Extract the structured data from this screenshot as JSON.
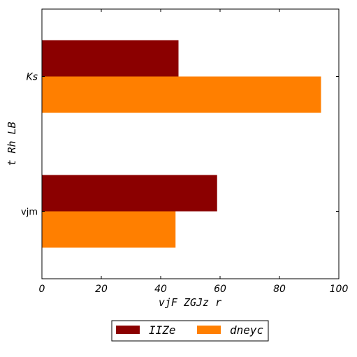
{
  "chart_data": {
    "type": "bar",
    "orientation": "horizontal",
    "categories": [
      "vjm",
      "Ks"
    ],
    "category_label_style": [
      "normal",
      "italic"
    ],
    "series": [
      {
        "name": "IIZe",
        "color": "#8b0000",
        "values": [
          59,
          46
        ]
      },
      {
        "name": "dneyc",
        "color": "#ff7f00",
        "values": [
          45,
          94
        ]
      }
    ],
    "xlabel": "vjF ZGJz r",
    "ylabel": "t Rh LB",
    "xlim": [
      0,
      100
    ],
    "xticks": [
      0,
      20,
      40,
      60,
      80,
      100
    ],
    "grid": false,
    "legend_position": "bottom-center"
  }
}
